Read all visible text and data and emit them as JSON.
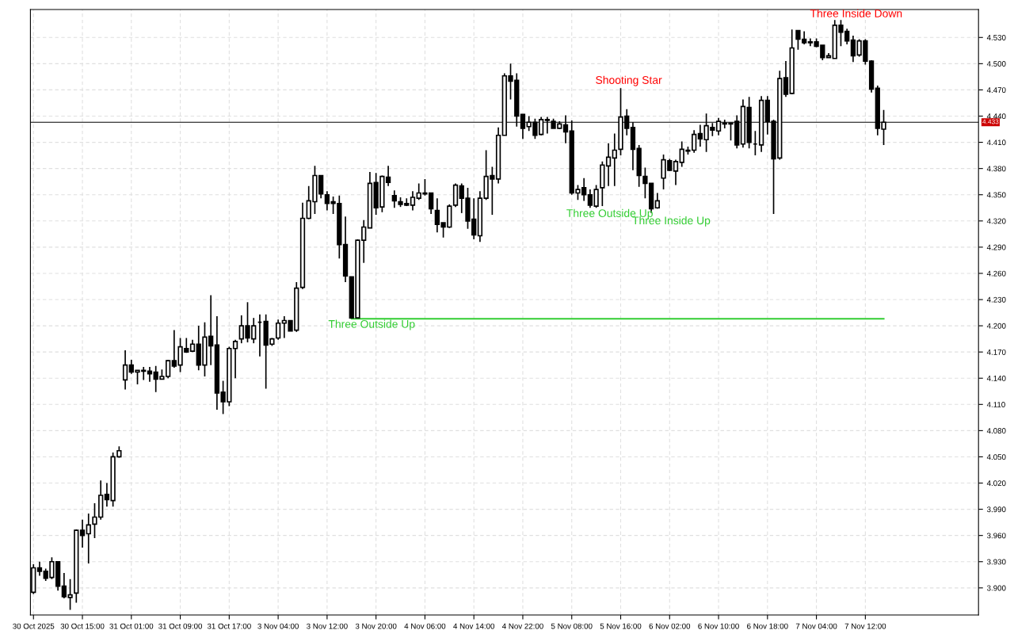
{
  "chart_data": {
    "type": "candlestick",
    "categories": [
      "30 Oct 2025",
      null,
      null,
      null,
      null,
      null,
      null,
      null,
      "30 Oct 15:00",
      null,
      null,
      null,
      null,
      null,
      null,
      null,
      "31 Oct 01:00",
      null,
      null,
      null,
      null,
      null,
      null,
      null,
      "31 Oct 09:00",
      null,
      null,
      null,
      null,
      null,
      null,
      null,
      "31 Oct 17:00",
      null,
      null,
      null,
      null,
      null,
      null,
      null,
      "3 Nov 04:00",
      null,
      null,
      null,
      null,
      null,
      null,
      null,
      "3 Nov 12:00",
      null,
      null,
      null,
      null,
      null,
      null,
      null,
      "3 Nov 20:00",
      null,
      null,
      null,
      null,
      null,
      null,
      null,
      "4 Nov 06:00",
      null,
      null,
      null,
      null,
      null,
      null,
      null,
      "4 Nov 14:00",
      null,
      null,
      null,
      null,
      null,
      null,
      null,
      "4 Nov 22:00",
      null,
      null,
      null,
      null,
      null,
      null,
      null,
      "5 Nov 08:00",
      null,
      null,
      null,
      null,
      null,
      null,
      null,
      "5 Nov 16:00",
      null,
      null,
      null,
      null,
      null,
      null,
      null,
      "6 Nov 02:00",
      null,
      null,
      null,
      null,
      null,
      null,
      null,
      "6 Nov 10:00",
      null,
      null,
      null,
      null,
      null,
      null,
      null,
      "6 Nov 18:00",
      null,
      null,
      null,
      null,
      null,
      null,
      null,
      "7 Nov 04:00",
      null,
      null,
      null,
      null,
      null,
      null,
      null,
      "7 Nov 12:00",
      null,
      null,
      null
    ],
    "ohlc": [
      [
        3.895,
        3.927,
        3.893,
        3.923
      ],
      [
        3.923,
        3.93,
        3.914,
        3.919
      ],
      [
        3.919,
        3.922,
        3.908,
        3.911
      ],
      [
        3.912,
        3.935,
        3.91,
        3.93
      ],
      [
        3.93,
        3.93,
        3.897,
        3.902
      ],
      [
        3.902,
        3.917,
        3.888,
        3.89
      ],
      [
        3.889,
        3.91,
        3.875,
        3.892
      ],
      [
        3.894,
        3.967,
        3.883,
        3.966
      ],
      [
        3.966,
        3.978,
        3.946,
        3.96
      ],
      [
        3.962,
        3.985,
        3.928,
        3.972
      ],
      [
        3.973,
        3.997,
        3.957,
        3.981
      ],
      [
        3.981,
        4.023,
        3.978,
        4.006
      ],
      [
        4.007,
        4.02,
        3.993,
        4.001
      ],
      [
        4.0,
        4.055,
        3.993,
        4.05
      ],
      [
        4.05,
        4.062,
        4.049,
        4.057
      ],
      [
        4.138,
        4.172,
        4.127,
        4.155
      ],
      [
        4.155,
        4.161,
        4.145,
        4.147
      ],
      [
        4.147,
        4.149,
        4.133,
        4.149
      ],
      [
        4.149,
        4.153,
        4.138,
        4.148
      ],
      [
        4.148,
        4.153,
        4.136,
        4.145
      ],
      [
        4.147,
        4.154,
        4.124,
        4.139
      ],
      [
        4.139,
        4.15,
        4.139,
        4.142
      ],
      [
        4.142,
        4.161,
        4.14,
        4.16
      ],
      [
        4.16,
        4.195,
        4.152,
        4.154
      ],
      [
        4.155,
        4.186,
        4.147,
        4.176
      ],
      [
        4.174,
        4.186,
        4.169,
        4.17
      ],
      [
        4.171,
        4.184,
        4.17,
        4.179
      ],
      [
        4.179,
        4.2,
        4.149,
        4.155
      ],
      [
        4.155,
        4.204,
        4.142,
        4.187
      ],
      [
        4.188,
        4.235,
        4.155,
        4.177
      ],
      [
        4.178,
        4.211,
        4.104,
        4.123
      ],
      [
        4.124,
        4.137,
        4.099,
        4.113
      ],
      [
        4.113,
        4.176,
        4.108,
        4.174
      ],
      [
        4.174,
        4.184,
        4.14,
        4.182
      ],
      [
        4.185,
        4.212,
        4.18,
        4.2
      ],
      [
        4.2,
        4.227,
        4.181,
        4.186
      ],
      [
        4.185,
        4.209,
        4.18,
        4.2
      ],
      [
        4.204,
        4.213,
        4.165,
        4.204
      ],
      [
        4.205,
        4.213,
        4.128,
        4.178
      ],
      [
        4.179,
        4.186,
        4.177,
        4.185
      ],
      [
        4.186,
        4.207,
        4.184,
        4.203
      ],
      [
        4.203,
        4.211,
        4.186,
        4.206
      ],
      [
        4.206,
        4.206,
        4.194,
        4.194
      ],
      [
        4.195,
        4.25,
        4.193,
        4.243
      ],
      [
        4.244,
        4.341,
        4.242,
        4.323
      ],
      [
        4.323,
        4.36,
        4.322,
        4.343
      ],
      [
        4.342,
        4.383,
        4.328,
        4.372
      ],
      [
        4.372,
        4.372,
        4.346,
        4.351
      ],
      [
        4.35,
        4.354,
        4.332,
        4.34
      ],
      [
        4.342,
        4.348,
        4.328,
        4.34
      ],
      [
        4.34,
        4.349,
        4.277,
        4.293
      ],
      [
        4.293,
        4.325,
        4.25,
        4.257
      ],
      [
        4.256,
        4.256,
        4.209,
        4.209
      ],
      [
        4.209,
        4.299,
        4.209,
        4.298
      ],
      [
        4.298,
        4.321,
        4.272,
        4.313
      ],
      [
        4.312,
        4.376,
        4.312,
        4.363
      ],
      [
        4.364,
        4.375,
        4.327,
        4.335
      ],
      [
        4.336,
        4.372,
        4.33,
        4.371
      ],
      [
        4.37,
        4.383,
        4.36,
        4.364
      ],
      [
        4.349,
        4.355,
        4.335,
        4.343
      ],
      [
        4.342,
        4.347,
        4.336,
        4.339
      ],
      [
        4.34,
        4.346,
        4.337,
        4.338
      ],
      [
        4.338,
        4.354,
        4.332,
        4.347
      ],
      [
        4.346,
        4.363,
        4.344,
        4.352
      ],
      [
        4.352,
        4.368,
        4.349,
        4.351
      ],
      [
        4.352,
        4.352,
        4.328,
        4.334
      ],
      [
        4.332,
        4.346,
        4.307,
        4.316
      ],
      [
        4.318,
        4.318,
        4.301,
        4.313
      ],
      [
        4.313,
        4.339,
        4.312,
        4.337
      ],
      [
        4.338,
        4.363,
        4.336,
        4.361
      ],
      [
        4.36,
        4.363,
        4.329,
        4.346
      ],
      [
        4.346,
        4.358,
        4.311,
        4.32
      ],
      [
        4.322,
        4.346,
        4.299,
        4.304
      ],
      [
        4.303,
        4.354,
        4.296,
        4.346
      ],
      [
        4.346,
        4.401,
        4.344,
        4.371
      ],
      [
        4.372,
        4.382,
        4.327,
        4.368
      ],
      [
        4.368,
        4.427,
        4.363,
        4.418
      ],
      [
        4.418,
        4.489,
        4.418,
        4.486
      ],
      [
        4.486,
        4.5,
        4.459,
        4.48
      ],
      [
        4.481,
        4.489,
        4.428,
        4.44
      ],
      [
        4.442,
        4.442,
        4.414,
        4.426
      ],
      [
        4.428,
        4.44,
        4.423,
        4.433
      ],
      [
        4.433,
        4.437,
        4.414,
        4.418
      ],
      [
        4.419,
        4.439,
        4.418,
        4.436
      ],
      [
        4.436,
        4.439,
        4.42,
        4.435
      ],
      [
        4.434,
        4.437,
        4.426,
        4.426
      ],
      [
        4.426,
        4.434,
        4.425,
        4.431
      ],
      [
        4.43,
        4.441,
        4.409,
        4.422
      ],
      [
        4.423,
        4.435,
        4.35,
        4.352
      ],
      [
        4.352,
        4.361,
        4.344,
        4.356
      ],
      [
        4.358,
        4.369,
        4.343,
        4.35
      ],
      [
        4.35,
        4.356,
        4.335,
        4.338
      ],
      [
        4.337,
        4.361,
        4.335,
        4.356
      ],
      [
        4.358,
        4.388,
        4.337,
        4.384
      ],
      [
        4.383,
        4.409,
        4.36,
        4.393
      ],
      [
        4.392,
        4.42,
        4.36,
        4.401
      ],
      [
        4.402,
        4.472,
        4.395,
        4.439
      ],
      [
        4.44,
        4.448,
        4.418,
        4.426
      ],
      [
        4.427,
        4.433,
        4.378,
        4.402
      ],
      [
        4.403,
        4.407,
        4.359,
        4.372
      ],
      [
        4.371,
        4.381,
        4.346,
        4.363
      ],
      [
        4.363,
        4.363,
        4.329,
        4.334
      ],
      [
        4.335,
        4.352,
        4.334,
        4.343
      ],
      [
        4.369,
        4.396,
        4.356,
        4.39
      ],
      [
        4.389,
        4.391,
        4.377,
        4.378
      ],
      [
        4.377,
        4.39,
        4.361,
        4.388
      ],
      [
        4.387,
        4.411,
        4.382,
        4.402
      ],
      [
        4.401,
        4.405,
        4.396,
        4.4
      ],
      [
        4.401,
        4.424,
        4.398,
        4.419
      ],
      [
        4.42,
        4.43,
        4.405,
        4.414
      ],
      [
        4.413,
        4.443,
        4.399,
        4.429
      ],
      [
        4.427,
        4.432,
        4.417,
        4.424
      ],
      [
        4.423,
        4.438,
        4.418,
        4.434
      ],
      [
        4.432,
        4.436,
        4.426,
        4.431
      ],
      [
        4.432,
        4.432,
        4.412,
        4.431
      ],
      [
        4.434,
        4.441,
        4.403,
        4.407
      ],
      [
        4.408,
        4.459,
        4.404,
        4.451
      ],
      [
        4.45,
        4.462,
        4.403,
        4.41
      ],
      [
        4.408,
        4.423,
        4.395,
        4.408
      ],
      [
        4.407,
        4.463,
        4.399,
        4.458
      ],
      [
        4.458,
        4.463,
        4.419,
        4.434
      ],
      [
        4.434,
        4.436,
        4.328,
        4.391
      ],
      [
        4.392,
        4.492,
        4.39,
        4.483
      ],
      [
        4.484,
        4.503,
        4.462,
        4.465
      ],
      [
        4.466,
        4.539,
        4.465,
        4.518
      ],
      [
        4.538,
        4.538,
        4.516,
        4.528
      ],
      [
        4.528,
        4.537,
        4.522,
        4.524
      ],
      [
        4.525,
        4.529,
        4.52,
        4.524
      ],
      [
        4.525,
        4.529,
        4.519,
        4.52
      ],
      [
        4.521,
        4.521,
        4.504,
        4.507
      ],
      [
        4.507,
        4.512,
        4.507,
        4.509
      ],
      [
        4.506,
        4.55,
        4.506,
        4.544
      ],
      [
        4.544,
        4.55,
        4.52,
        4.536
      ],
      [
        4.537,
        4.54,
        4.522,
        4.526
      ],
      [
        4.527,
        4.532,
        4.502,
        4.509
      ],
      [
        4.51,
        4.528,
        4.508,
        4.526
      ],
      [
        4.526,
        4.528,
        4.499,
        4.503
      ],
      [
        4.503,
        4.504,
        4.467,
        4.471
      ],
      [
        4.472,
        4.475,
        4.418,
        4.426
      ],
      [
        4.425,
        4.447,
        4.407,
        4.433
      ]
    ],
    "color": "#000000",
    "series": [
      {
        "type": "line",
        "color": "#32cd32",
        "values": [
          null,
          null,
          null,
          null,
          null,
          null,
          null,
          null,
          null,
          null,
          null,
          null,
          null,
          null,
          null,
          null,
          null,
          null,
          null,
          null,
          null,
          null,
          null,
          null,
          null,
          null,
          null,
          null,
          null,
          null,
          null,
          null,
          null,
          null,
          null,
          null,
          null,
          null,
          null,
          null,
          null,
          null,
          null,
          null,
          null,
          null,
          null,
          null,
          null,
          null,
          null,
          null,
          4.208,
          4.208,
          4.208,
          4.208,
          4.208,
          4.208,
          4.208,
          4.208,
          4.208,
          4.208,
          4.208,
          4.208,
          4.208,
          4.208,
          4.208,
          4.208,
          4.208,
          4.208,
          4.208,
          4.208,
          4.208,
          4.208,
          4.208,
          4.208,
          4.208,
          4.208,
          4.208,
          4.208,
          4.208,
          4.208,
          4.208,
          4.208,
          4.208,
          4.208,
          4.208,
          4.208,
          4.208,
          4.208,
          4.208,
          4.208,
          4.208,
          4.208,
          4.208,
          4.208,
          4.208,
          4.208,
          4.208,
          4.208,
          4.208,
          4.208,
          4.208,
          4.208,
          4.208,
          4.208,
          4.208,
          4.208,
          4.208,
          4.208,
          4.208,
          4.208,
          4.208,
          4.208,
          4.208,
          4.208,
          4.208,
          4.208,
          4.208,
          4.208,
          4.208,
          4.208,
          4.208,
          4.208,
          4.208,
          4.208,
          4.208,
          4.208,
          4.208,
          4.208,
          4.208,
          4.208,
          4.208,
          4.208,
          4.208,
          4.208,
          4.208,
          4.208,
          4.208,
          4.208
        ]
      }
    ],
    "ylim": [
      3.869,
      4.562
    ],
    "yticks": [
      {
        "value": 3.9,
        "label": "3.900"
      },
      {
        "value": 3.93,
        "label": "3.930"
      },
      {
        "value": 3.96,
        "label": "3.960"
      },
      {
        "value": 3.99,
        "label": "3.990"
      },
      {
        "value": 4.02,
        "label": "4.020"
      },
      {
        "value": 4.05,
        "label": "4.050"
      },
      {
        "value": 4.08,
        "label": "4.080"
      },
      {
        "value": 4.11,
        "label": "4.110"
      },
      {
        "value": 4.14,
        "label": "4.140"
      },
      {
        "value": 4.17,
        "label": "4.170"
      },
      {
        "value": 4.2,
        "label": "4.200"
      },
      {
        "value": 4.23,
        "label": "4.230"
      },
      {
        "value": 4.26,
        "label": "4.260"
      },
      {
        "value": 4.29,
        "label": "4.290"
      },
      {
        "value": 4.32,
        "label": "4.320"
      },
      {
        "value": 4.35,
        "label": "4.350"
      },
      {
        "value": 4.38,
        "label": "4.380"
      },
      {
        "value": 4.41,
        "label": "4.410"
      },
      {
        "value": 4.44,
        "label": "4.440"
      },
      {
        "value": 4.47,
        "label": "4.470"
      },
      {
        "value": 4.5,
        "label": "4.500"
      },
      {
        "value": 4.53,
        "label": "4.530"
      }
    ],
    "ref_lines": [
      {
        "axis": "y",
        "value": 4.433,
        "label": "4.433",
        "color": "#000000"
      }
    ],
    "annotations": [
      "Three Outside Up",
      "Three Outside Up",
      "Shooting Star",
      "Three Inside Up",
      "Three Inside Down"
    ],
    "grid": true,
    "legend": false
  }
}
